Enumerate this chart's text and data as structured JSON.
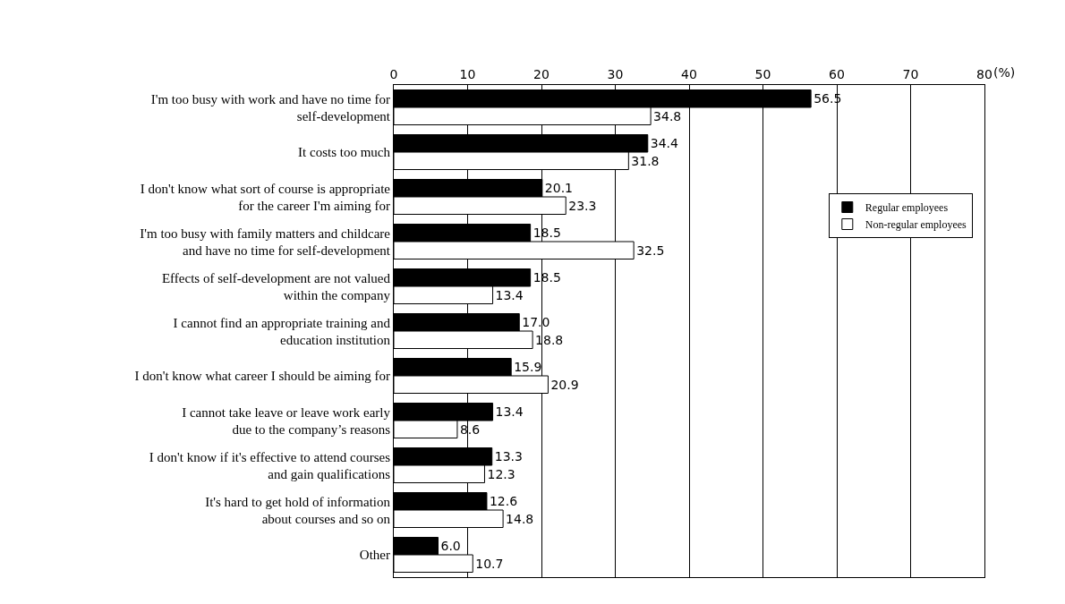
{
  "chart_data": {
    "type": "bar",
    "orientation": "horizontal",
    "xlabel": "(%)",
    "categories": [
      "I'm too busy with work and have no time for\nself-development",
      "It costs too much",
      "I don't know what sort of course is appropriate\nfor the career I'm aiming for",
      "I'm too busy with family matters and childcare\nand have no time for self-development",
      "Effects of self-development are not valued\nwithin the company",
      "I cannot find an appropriate training and\neducation institution",
      "I don't know what career I should be aiming for",
      "I cannot take leave or leave work early\ndue to the company’s reasons",
      "I don't know if it's effective to attend courses\nand gain qualifications",
      "It's hard to get hold of information\nabout courses and so on",
      "Other"
    ],
    "series": [
      {
        "name": "Regular employees",
        "color": "#000000",
        "values": [
          56.5,
          34.4,
          20.1,
          18.5,
          18.5,
          17.0,
          15.9,
          13.4,
          13.3,
          12.6,
          6.0
        ],
        "value_labels": [
          "56.5",
          "34.4",
          "20.1",
          "18.5",
          "18.5",
          "17.0",
          "15.9",
          "13.4",
          "13.3",
          "12.6",
          "6.0"
        ]
      },
      {
        "name": "Non-regular employees",
        "color": "#ffffff",
        "values": [
          34.8,
          31.8,
          23.3,
          32.5,
          13.4,
          18.8,
          20.9,
          8.6,
          12.3,
          14.8,
          10.7
        ],
        "value_labels": [
          "34.8",
          "31.8",
          "23.3",
          "32.5",
          "13.4",
          "18.8",
          "20.9",
          "8.6",
          "12.3",
          "14.8",
          "10.7"
        ]
      }
    ],
    "xlim": [
      0,
      80
    ],
    "xticks": [
      0,
      10,
      20,
      30,
      40,
      50,
      60,
      70,
      80
    ],
    "grid": "x",
    "legend": "right"
  }
}
